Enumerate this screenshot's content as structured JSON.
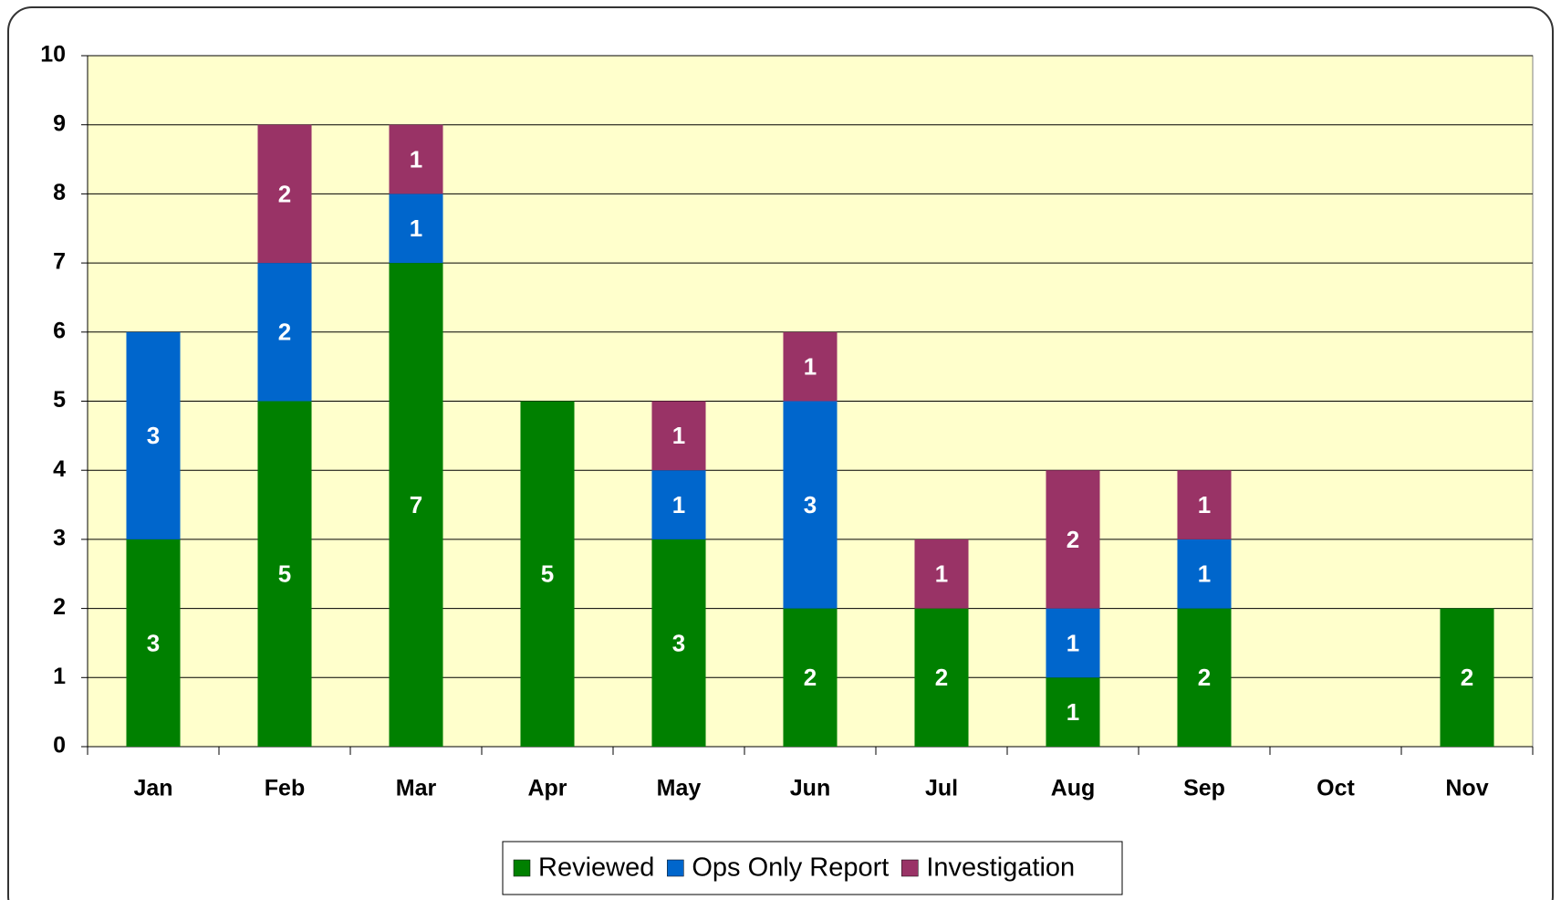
{
  "chart_data": {
    "type": "stacked_bar",
    "categories": [
      "Jan",
      "Feb",
      "Mar",
      "Apr",
      "May",
      "Jun",
      "Jul",
      "Aug",
      "Sep",
      "Oct",
      "Nov"
    ],
    "series": [
      {
        "name": "Reviewed",
        "color": "#008000",
        "values": [
          3,
          5,
          7,
          5,
          3,
          2,
          2,
          1,
          2,
          null,
          2
        ]
      },
      {
        "name": "Ops Only Report",
        "color": "#0066cc",
        "values": [
          3,
          2,
          1,
          null,
          1,
          3,
          null,
          1,
          1,
          null,
          null
        ]
      },
      {
        "name": "Investigation",
        "color": "#993366",
        "values": [
          null,
          2,
          1,
          null,
          1,
          1,
          1,
          2,
          1,
          null,
          null
        ]
      }
    ],
    "ylim": [
      0,
      10
    ],
    "yticks": [
      0,
      1,
      2,
      3,
      4,
      5,
      6,
      7,
      8,
      9,
      10
    ],
    "grid": true,
    "legend": "bottom"
  }
}
